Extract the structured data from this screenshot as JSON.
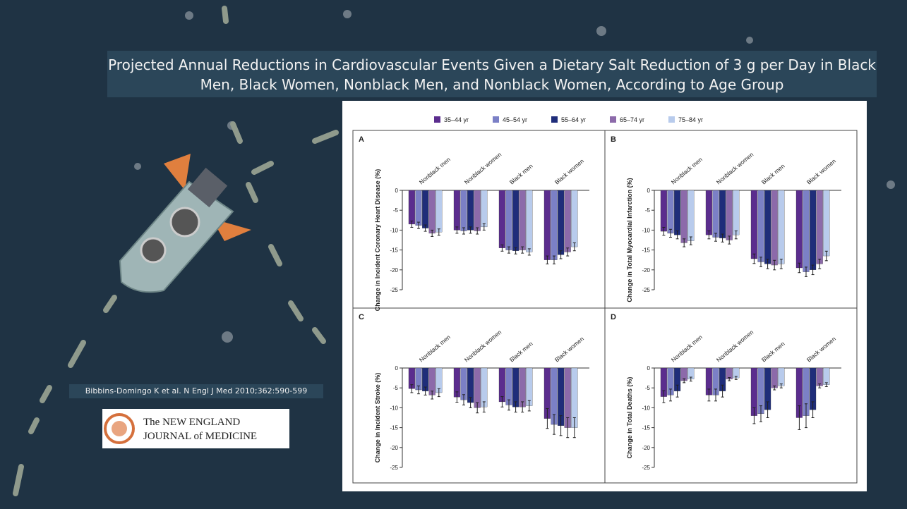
{
  "slide": {
    "title": "Projected Annual Reductions in Cardiovascular Events Given a Dietary Salt Reduction of 3 g per Day in Black Men, Black Women, Nonblack Men, and Nonblack Women, According to Age Group",
    "citation": "Bibbins-Domingo K et al. N Engl J Med 2010;362:590-599",
    "logo": {
      "line1": "The NEW ENGLAND",
      "line2": "JOURNAL of MEDICINE"
    }
  },
  "legend": [
    {
      "name": "35–44 yr",
      "color": "#5b2d8e"
    },
    {
      "name": "45–54 yr",
      "color": "#7b80c6"
    },
    {
      "name": "55–64 yr",
      "color": "#1f2d7a"
    },
    {
      "name": "65–74 yr",
      "color": "#8c6aaa"
    },
    {
      "name": "75–84 yr",
      "color": "#b8cbec"
    }
  ],
  "chart_data": [
    {
      "type": "bar",
      "panel": "A",
      "ylabel": "Change in Incident Coronary Heart Disease (%)",
      "categories": [
        "Nonblack men",
        "Nonblack women",
        "Black men",
        "Black women"
      ],
      "series": [
        {
          "values": [
            -8.5,
            -10,
            -14.5,
            -17.5
          ],
          "errors": [
            0.8,
            0.8,
            0.8,
            1
          ]
        },
        {
          "values": [
            -8.8,
            -10.2,
            -15,
            -17.5
          ],
          "errors": [
            0.8,
            0.8,
            0.8,
            1
          ]
        },
        {
          "values": [
            -9.5,
            -10,
            -15.2,
            -16.2
          ],
          "errors": [
            0.8,
            0.8,
            0.8,
            1
          ]
        },
        {
          "values": [
            -10.8,
            -10.2,
            -15,
            -15.5
          ],
          "errors": [
            0.8,
            0.8,
            0.8,
            1
          ]
        },
        {
          "values": [
            -10.5,
            -9.2,
            -15.5,
            -14.2
          ],
          "errors": [
            0.8,
            0.8,
            0.8,
            1
          ]
        }
      ],
      "ylim": [
        -25,
        0
      ],
      "yticks": [
        0,
        -5,
        -10,
        -15,
        -20,
        -25
      ]
    },
    {
      "type": "bar",
      "panel": "B",
      "ylabel": "Change in Total Myocardial Infarction (%)",
      "categories": [
        "Nonblack men",
        "Nonblack women",
        "Black men",
        "Black women"
      ],
      "series": [
        {
          "values": [
            -10.3,
            -11.2,
            -17.2,
            -19.5
          ],
          "errors": [
            1,
            1,
            1.2,
            1.2
          ]
        },
        {
          "values": [
            -10.8,
            -11.8,
            -18,
            -20.5
          ],
          "errors": [
            1,
            1,
            1.2,
            1.2
          ]
        },
        {
          "values": [
            -11.2,
            -12,
            -18.5,
            -20
          ],
          "errors": [
            1,
            1,
            1.2,
            1.2
          ]
        },
        {
          "values": [
            -13.2,
            -12.5,
            -18.8,
            -18.5
          ],
          "errors": [
            1,
            1,
            1.2,
            1.2
          ]
        },
        {
          "values": [
            -12.7,
            -11.2,
            -18.5,
            -16.5
          ],
          "errors": [
            1,
            1,
            1.2,
            1.2
          ]
        }
      ],
      "ylim": [
        -25,
        0
      ],
      "yticks": [
        0,
        -5,
        -10,
        -15,
        -20,
        -25
      ]
    },
    {
      "type": "bar",
      "panel": "C",
      "ylabel": "Change in Incident Stroke (%)",
      "categories": [
        "Nonblack men",
        "Nonblack women",
        "Black men",
        "Black women"
      ],
      "series": [
        {
          "values": [
            -5.2,
            -7.3,
            -8.5,
            -12.7
          ],
          "errors": [
            1,
            1.3,
            1.3,
            2.5
          ]
        },
        {
          "values": [
            -5.5,
            -8,
            -9.3,
            -14.2
          ],
          "errors": [
            1,
            1.3,
            1.3,
            2.5
          ]
        },
        {
          "values": [
            -5.8,
            -8.7,
            -9.8,
            -14.5
          ],
          "errors": [
            1,
            1.3,
            1.3,
            2.5
          ]
        },
        {
          "values": [
            -6.8,
            -10,
            -9.8,
            -15
          ],
          "errors": [
            1,
            1.3,
            1.3,
            2.5
          ]
        },
        {
          "values": [
            -6.2,
            -9.8,
            -9.5,
            -15
          ],
          "errors": [
            1,
            1.3,
            1.3,
            2.5
          ]
        }
      ],
      "ylim": [
        -25,
        0
      ],
      "yticks": [
        0,
        -5,
        -10,
        -15,
        -20,
        -25
      ]
    },
    {
      "type": "bar",
      "panel": "D",
      "ylabel": "Change in Total Deaths (%)",
      "categories": [
        "Nonblack men",
        "Nonblack women",
        "Black men",
        "Black women"
      ],
      "series": [
        {
          "values": [
            -7.2,
            -6.8,
            -12,
            -12.5
          ],
          "errors": [
            1.5,
            1.5,
            2,
            3
          ]
        },
        {
          "values": [
            -6.8,
            -6.8,
            -11.5,
            -12
          ],
          "errors": [
            1.5,
            1.5,
            2,
            3
          ]
        },
        {
          "values": [
            -5.8,
            -5.8,
            -10.5,
            -10.5
          ],
          "errors": [
            1.5,
            1.5,
            2,
            2
          ]
        },
        {
          "values": [
            -3.2,
            -2.8,
            -5,
            -4.5
          ],
          "errors": [
            0.5,
            0.4,
            0.5,
            0.5
          ]
        },
        {
          "values": [
            -2.8,
            -2.5,
            -4.5,
            -4.2
          ],
          "errors": [
            0.5,
            0.4,
            0.5,
            0.5
          ]
        }
      ],
      "ylim": [
        -25,
        0
      ],
      "yticks": [
        0,
        -5,
        -10,
        -15,
        -20,
        -25
      ]
    }
  ]
}
